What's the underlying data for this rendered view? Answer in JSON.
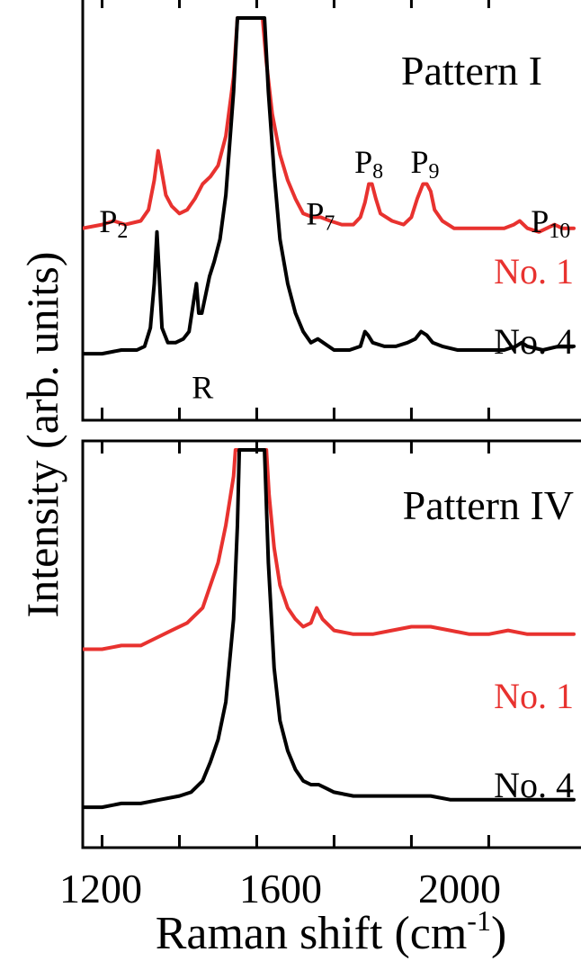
{
  "colors": {
    "red": "#e8322f",
    "black": "#000000"
  },
  "figure": {
    "ylabel": "Intensity (arb. units)",
    "xlabel_main": "Raman shift (cm",
    "xlabel_sup": "-1",
    "xlabel_end": ")",
    "xticks": [
      "1200",
      "1600",
      "2000"
    ]
  },
  "chart_data": [
    {
      "type": "line",
      "title": "Pattern I",
      "xlabel": "Raman shift (cm-1)",
      "ylabel": "Intensity (arb. units)",
      "xlim": [
        1150,
        2420
      ],
      "ylim": [
        0,
        100
      ],
      "xticks": [
        1200,
        1400,
        1600,
        1800,
        2000,
        2200
      ],
      "annotations": [
        {
          "label": "P",
          "sub": "2",
          "x": 1230,
          "y": 42
        },
        {
          "label": "P",
          "sub": "7",
          "x": 1765,
          "y": 44
        },
        {
          "label": "P",
          "sub": "8",
          "x": 1890,
          "y": 58
        },
        {
          "label": "P",
          "sub": "9",
          "x": 2035,
          "y": 58
        },
        {
          "label": "P",
          "sub": "10",
          "x": 2360,
          "y": 42
        },
        {
          "label": "R",
          "sub": "",
          "x": 1460,
          "y": -3
        }
      ],
      "series": [
        {
          "name": "No. 1",
          "color": "#e8322f",
          "points": [
            [
              1150,
              43
            ],
            [
              1200,
              44
            ],
            [
              1230,
              45
            ],
            [
              1260,
              44
            ],
            [
              1300,
              45
            ],
            [
              1320,
              48
            ],
            [
              1335,
              56
            ],
            [
              1345,
              64
            ],
            [
              1355,
              58
            ],
            [
              1365,
              52
            ],
            [
              1380,
              49
            ],
            [
              1400,
              47
            ],
            [
              1420,
              48
            ],
            [
              1440,
              51
            ],
            [
              1460,
              55
            ],
            [
              1480,
              57
            ],
            [
              1500,
              60
            ],
            [
              1520,
              68
            ],
            [
              1540,
              84
            ],
            [
              1550,
              100
            ],
            [
              1615,
              100
            ],
            [
              1625,
              88
            ],
            [
              1640,
              74
            ],
            [
              1660,
              63
            ],
            [
              1680,
              56
            ],
            [
              1700,
              51
            ],
            [
              1720,
              47
            ],
            [
              1745,
              46
            ],
            [
              1765,
              46
            ],
            [
              1790,
              45
            ],
            [
              1820,
              44
            ],
            [
              1850,
              44
            ],
            [
              1868,
              46
            ],
            [
              1880,
              50
            ],
            [
              1890,
              55
            ],
            [
              1898,
              55
            ],
            [
              1908,
              51
            ],
            [
              1920,
              47
            ],
            [
              1950,
              45
            ],
            [
              1980,
              44
            ],
            [
              2000,
              46
            ],
            [
              2015,
              51
            ],
            [
              2030,
              55
            ],
            [
              2040,
              55
            ],
            [
              2050,
              53
            ],
            [
              2060,
              48
            ],
            [
              2080,
              45
            ],
            [
              2110,
              43
            ],
            [
              2150,
              43
            ],
            [
              2200,
              43
            ],
            [
              2240,
              43
            ],
            [
              2265,
              44
            ],
            [
              2280,
              45
            ],
            [
              2300,
              43
            ],
            [
              2330,
              42
            ],
            [
              2350,
              43
            ],
            [
              2370,
              44
            ],
            [
              2390,
              43
            ],
            [
              2420,
              43
            ]
          ]
        },
        {
          "name": "No. 4",
          "color": "#000000",
          "points": [
            [
              1150,
              9
            ],
            [
              1200,
              9
            ],
            [
              1250,
              10
            ],
            [
              1290,
              10
            ],
            [
              1310,
              11
            ],
            [
              1325,
              16
            ],
            [
              1335,
              28
            ],
            [
              1342,
              42
            ],
            [
              1348,
              30
            ],
            [
              1355,
              16
            ],
            [
              1370,
              12
            ],
            [
              1390,
              12
            ],
            [
              1410,
              13
            ],
            [
              1425,
              15
            ],
            [
              1438,
              24
            ],
            [
              1444,
              28
            ],
            [
              1450,
              20
            ],
            [
              1458,
              20
            ],
            [
              1468,
              25
            ],
            [
              1478,
              30
            ],
            [
              1490,
              34
            ],
            [
              1505,
              40
            ],
            [
              1520,
              52
            ],
            [
              1540,
              80
            ],
            [
              1550,
              100
            ],
            [
              1620,
              100
            ],
            [
              1630,
              80
            ],
            [
              1645,
              58
            ],
            [
              1660,
              40
            ],
            [
              1680,
              28
            ],
            [
              1700,
              20
            ],
            [
              1720,
              15
            ],
            [
              1740,
              12
            ],
            [
              1758,
              13
            ],
            [
              1772,
              12
            ],
            [
              1800,
              10
            ],
            [
              1840,
              10
            ],
            [
              1868,
              11
            ],
            [
              1880,
              15
            ],
            [
              1888,
              14
            ],
            [
              1900,
              12
            ],
            [
              1930,
              11
            ],
            [
              1960,
              11
            ],
            [
              1990,
              12
            ],
            [
              2010,
              13
            ],
            [
              2025,
              15
            ],
            [
              2040,
              14
            ],
            [
              2055,
              12
            ],
            [
              2080,
              11
            ],
            [
              2120,
              10
            ],
            [
              2160,
              10
            ],
            [
              2200,
              10
            ],
            [
              2240,
              10
            ],
            [
              2270,
              11
            ],
            [
              2285,
              12
            ],
            [
              2300,
              11
            ],
            [
              2340,
              10
            ],
            [
              2380,
              11
            ],
            [
              2420,
              11
            ]
          ]
        }
      ]
    },
    {
      "type": "line",
      "title": "Pattern IV",
      "xlabel": "Raman shift (cm-1)",
      "ylabel": "Intensity (arb. units)",
      "xlim": [
        1150,
        2420
      ],
      "ylim": [
        0,
        100
      ],
      "xticks": [
        1200,
        1400,
        1600,
        1800,
        2000,
        2200
      ],
      "series": [
        {
          "name": "No. 1",
          "color": "#e8322f",
          "points": [
            [
              1150,
              47
            ],
            [
              1200,
              47
            ],
            [
              1250,
              48
            ],
            [
              1300,
              48
            ],
            [
              1340,
              50
            ],
            [
              1380,
              52
            ],
            [
              1420,
              54
            ],
            [
              1460,
              58
            ],
            [
              1480,
              64
            ],
            [
              1500,
              70
            ],
            [
              1520,
              80
            ],
            [
              1540,
              93
            ],
            [
              1545,
              100
            ],
            [
              1625,
              100
            ],
            [
              1632,
              88
            ],
            [
              1645,
              74
            ],
            [
              1660,
              64
            ],
            [
              1680,
              58
            ],
            [
              1700,
              55
            ],
            [
              1720,
              53
            ],
            [
              1740,
              54
            ],
            [
              1755,
              58
            ],
            [
              1770,
              55
            ],
            [
              1800,
              52
            ],
            [
              1850,
              51
            ],
            [
              1900,
              51
            ],
            [
              1950,
              52
            ],
            [
              2000,
              53
            ],
            [
              2050,
              53
            ],
            [
              2100,
              52
            ],
            [
              2150,
              51
            ],
            [
              2200,
              51
            ],
            [
              2250,
              52
            ],
            [
              2300,
              51
            ],
            [
              2350,
              51
            ],
            [
              2420,
              51
            ]
          ]
        },
        {
          "name": "No. 4",
          "color": "#000000",
          "points": [
            [
              1150,
              5
            ],
            [
              1200,
              5
            ],
            [
              1250,
              6
            ],
            [
              1300,
              6
            ],
            [
              1350,
              7
            ],
            [
              1400,
              8
            ],
            [
              1430,
              9
            ],
            [
              1460,
              12
            ],
            [
              1480,
              17
            ],
            [
              1500,
              23
            ],
            [
              1520,
              33
            ],
            [
              1540,
              55
            ],
            [
              1550,
              80
            ],
            [
              1555,
              100
            ],
            [
              1620,
              100
            ],
            [
              1630,
              70
            ],
            [
              1645,
              42
            ],
            [
              1660,
              28
            ],
            [
              1680,
              20
            ],
            [
              1700,
              15
            ],
            [
              1720,
              12
            ],
            [
              1740,
              11
            ],
            [
              1760,
              11
            ],
            [
              1780,
              10
            ],
            [
              1800,
              9
            ],
            [
              1850,
              8
            ],
            [
              1900,
              8
            ],
            [
              1950,
              8
            ],
            [
              2000,
              8
            ],
            [
              2050,
              8
            ],
            [
              2100,
              7
            ],
            [
              2150,
              7
            ],
            [
              2200,
              7
            ],
            [
              2250,
              7
            ],
            [
              2300,
              7
            ],
            [
              2420,
              7
            ]
          ]
        }
      ]
    }
  ]
}
